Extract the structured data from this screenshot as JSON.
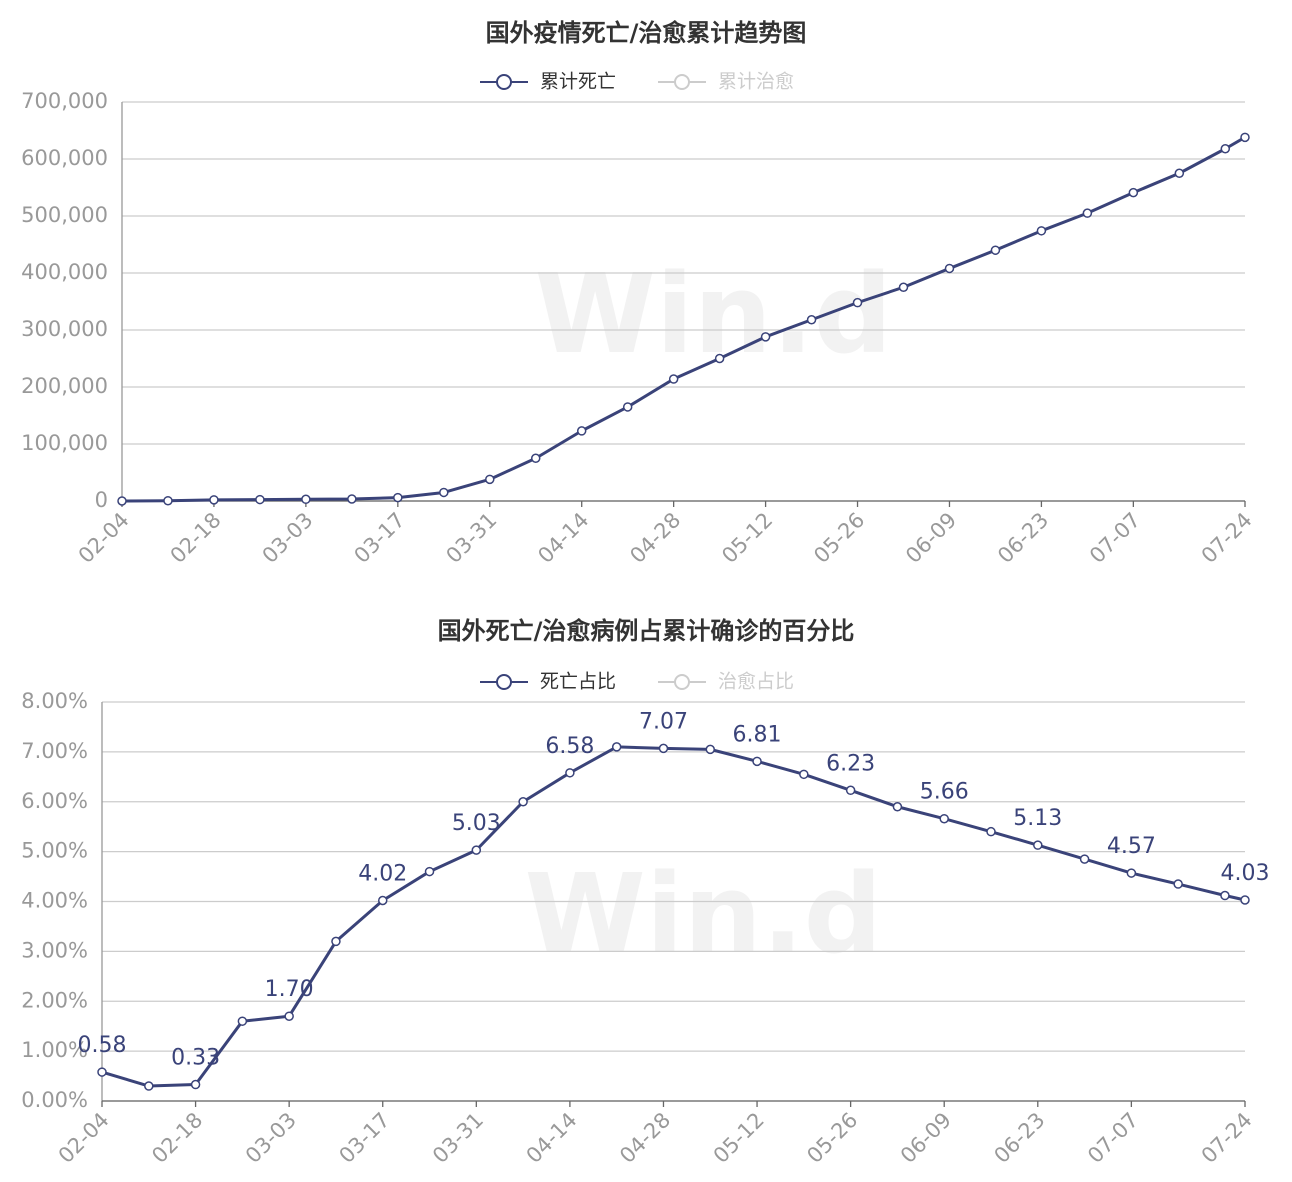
{
  "chart_data": [
    {
      "type": "line",
      "title": "国外疫情死亡/治愈累计趋势图",
      "watermark": "Win.d",
      "x": [
        0,
        7,
        14,
        21,
        28,
        35,
        42,
        49,
        56,
        63,
        70,
        77,
        84,
        91,
        98,
        105,
        112,
        119,
        126,
        133,
        140,
        147,
        154,
        161,
        168,
        171
      ],
      "xlim": [
        0,
        171
      ],
      "xticks": [
        {
          "value": 0,
          "label": "02-04"
        },
        {
          "value": 14,
          "label": "02-18"
        },
        {
          "value": 28,
          "label": "03-03"
        },
        {
          "value": 42,
          "label": "03-17"
        },
        {
          "value": 56,
          "label": "03-31"
        },
        {
          "value": 70,
          "label": "04-14"
        },
        {
          "value": 84,
          "label": "04-28"
        },
        {
          "value": 98,
          "label": "05-12"
        },
        {
          "value": 112,
          "label": "05-26"
        },
        {
          "value": 126,
          "label": "06-09"
        },
        {
          "value": 140,
          "label": "06-23"
        },
        {
          "value": 154,
          "label": "07-07"
        },
        {
          "value": 171,
          "label": "07-24"
        }
      ],
      "ylim": [
        0,
        700000
      ],
      "yticks": [
        0,
        {
          "value": 100000,
          "label": "100,000"
        },
        {
          "value": 200000,
          "label": "200,000"
        },
        {
          "value": 300000,
          "label": "300,000"
        },
        {
          "value": 400000,
          "label": "400,000"
        },
        {
          "value": 500000,
          "label": "500,000"
        },
        {
          "value": 600000,
          "label": "600,000"
        },
        {
          "value": 700000,
          "label": "700,000"
        }
      ],
      "grid": true,
      "series": [
        {
          "name": "累计死亡",
          "color": "#3a4379",
          "values": [
            0,
            500,
            2000,
            2500,
            3000,
            3500,
            6000,
            15000,
            38000,
            75000,
            123000,
            165000,
            214000,
            250000,
            288000,
            318000,
            348000,
            375000,
            408000,
            440000,
            474000,
            505000,
            541000,
            575000,
            618000,
            638000
          ]
        },
        {
          "name": "累计治愈",
          "color": "#cccccc",
          "hidden": true
        }
      ]
    },
    {
      "type": "line",
      "title": "国外死亡/治愈病例占累计确诊的百分比",
      "watermark": "Win.d",
      "x": [
        0,
        7,
        14,
        21,
        28,
        35,
        42,
        49,
        56,
        63,
        70,
        77,
        84,
        91,
        98,
        105,
        112,
        119,
        126,
        133,
        140,
        147,
        154,
        161,
        168,
        171
      ],
      "xlim": [
        0,
        171
      ],
      "xticks": [
        {
          "value": 0,
          "label": "02-04"
        },
        {
          "value": 14,
          "label": "02-18"
        },
        {
          "value": 28,
          "label": "03-03"
        },
        {
          "value": 42,
          "label": "03-17"
        },
        {
          "value": 56,
          "label": "03-31"
        },
        {
          "value": 70,
          "label": "04-14"
        },
        {
          "value": 84,
          "label": "04-28"
        },
        {
          "value": 98,
          "label": "05-12"
        },
        {
          "value": 112,
          "label": "05-26"
        },
        {
          "value": 126,
          "label": "06-09"
        },
        {
          "value": 140,
          "label": "06-23"
        },
        {
          "value": 154,
          "label": "07-07"
        },
        {
          "value": 171,
          "label": "07-24"
        }
      ],
      "ylim": [
        0,
        8
      ],
      "yticks": [
        {
          "value": 0,
          "label": "0.00%"
        },
        {
          "value": 1,
          "label": "1.00%"
        },
        {
          "value": 2,
          "label": "2.00%"
        },
        {
          "value": 3,
          "label": "3.00%"
        },
        {
          "value": 4,
          "label": "4.00%"
        },
        {
          "value": 5,
          "label": "5.00%"
        },
        {
          "value": 6,
          "label": "6.00%"
        },
        {
          "value": 7,
          "label": "7.00%"
        },
        {
          "value": 8,
          "label": "8.00%"
        }
      ],
      "grid": true,
      "series": [
        {
          "name": "死亡占比",
          "color": "#3a4379",
          "values": [
            0.58,
            0.3,
            0.33,
            1.6,
            1.7,
            3.2,
            4.02,
            4.6,
            5.03,
            6.0,
            6.58,
            7.1,
            7.07,
            7.05,
            6.81,
            6.55,
            6.23,
            5.9,
            5.66,
            5.4,
            5.13,
            4.85,
            4.57,
            4.35,
            4.12,
            4.03
          ],
          "value_labels": [
            "0.58",
            null,
            "0.33",
            null,
            "1.70",
            null,
            "4.02",
            null,
            "5.03",
            null,
            "6.58",
            null,
            "7.07",
            null,
            "6.81",
            null,
            "6.23",
            null,
            "5.66",
            null,
            "5.13",
            null,
            "4.57",
            null,
            null,
            "4.03"
          ]
        },
        {
          "name": "治愈占比",
          "color": "#cccccc",
          "hidden": true
        }
      ]
    }
  ]
}
